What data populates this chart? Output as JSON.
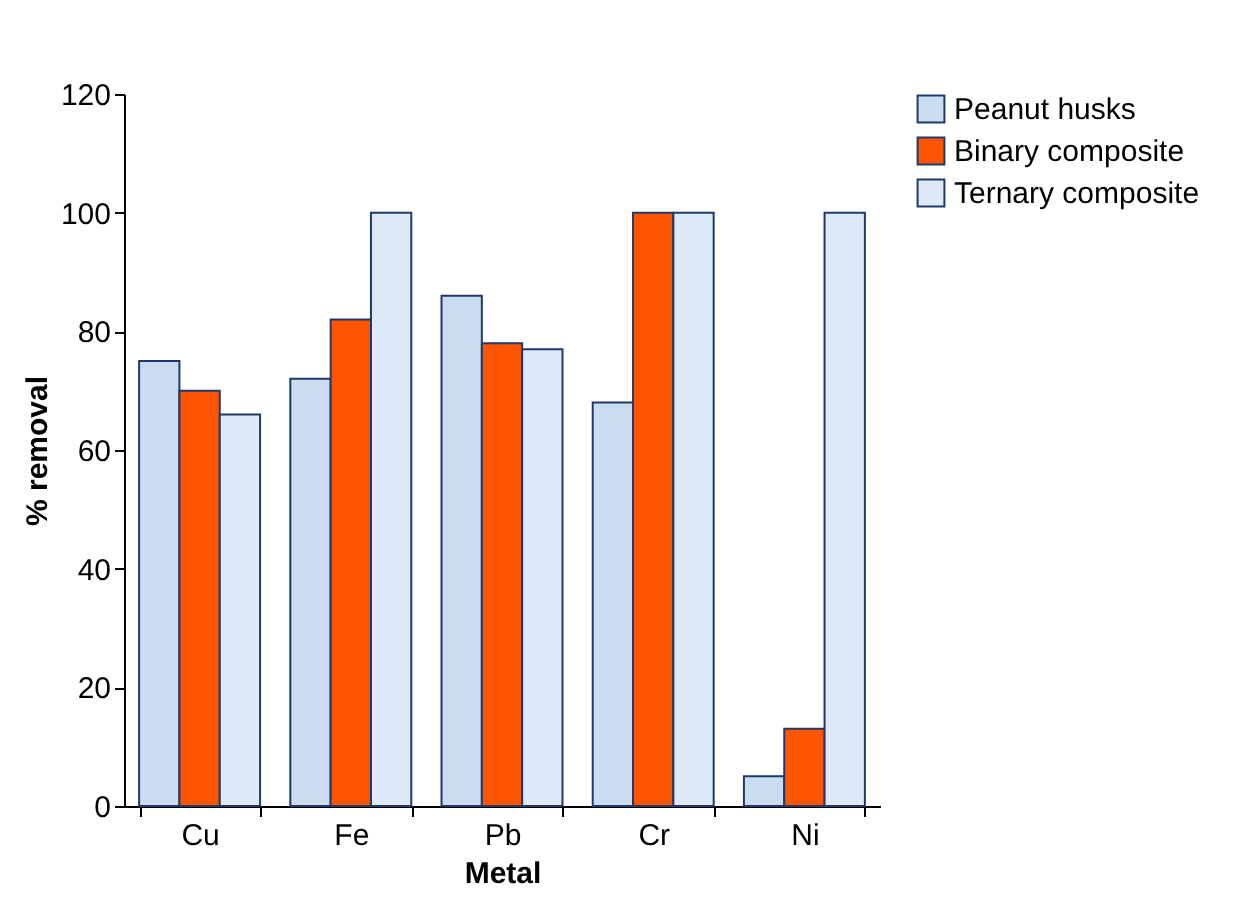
{
  "chart_data": {
    "type": "bar",
    "xlabel": "Metal",
    "ylabel": "% removal",
    "categories": [
      "Cu",
      "Fe",
      "Pb",
      "Cr",
      "Ni"
    ],
    "series": [
      {
        "name": "Peanut husks",
        "color": "#c9dcf0",
        "values": [
          75,
          72,
          86,
          68,
          5
        ]
      },
      {
        "name": "Binary composite",
        "color": "#ff5500",
        "values": [
          70,
          82,
          78,
          100,
          13
        ]
      },
      {
        "name": "Ternary composite",
        "color": "#dde9f7",
        "values": [
          66,
          100,
          77,
          100,
          100
        ]
      }
    ],
    "ylim": [
      0,
      120
    ],
    "yticks": [
      0,
      20,
      40,
      60,
      80,
      100,
      120
    ],
    "grid": false,
    "legend": "right"
  }
}
